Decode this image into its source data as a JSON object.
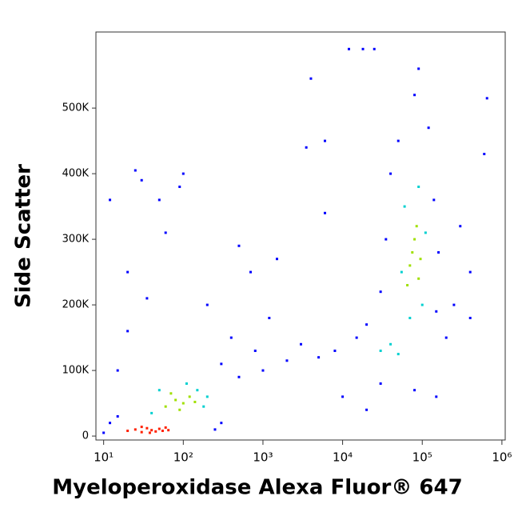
{
  "chart_data": {
    "type": "scatter",
    "xlabel": "Myeloperoxidase Alexa Fluor® 647",
    "ylabel": "Side Scatter",
    "xscale": "log",
    "xlim": [
      8,
      1100000
    ],
    "ylim": [
      -6000,
      616000
    ],
    "xticks": [
      {
        "value": 10,
        "label": "10¹"
      },
      {
        "value": 100,
        "label": "10²"
      },
      {
        "value": 1000,
        "label": "10³"
      },
      {
        "value": 10000,
        "label": "10⁴"
      },
      {
        "value": 100000,
        "label": "10⁵"
      },
      {
        "value": 1000000,
        "label": "10⁶"
      }
    ],
    "yticks": [
      0,
      {
        "value": 100000,
        "label": "100K"
      },
      {
        "value": 200000,
        "label": "200K"
      },
      {
        "value": 300000,
        "label": "300K"
      },
      {
        "value": 400000,
        "label": "400K"
      },
      {
        "value": 500000,
        "label": "500K"
      }
    ],
    "series": [
      {
        "color": "#0000ff",
        "x": [
          12,
          15,
          20,
          25,
          30,
          12,
          35,
          50,
          60,
          100,
          90,
          20,
          300,
          500,
          800,
          1000,
          2000,
          3000,
          5000,
          8000,
          15000,
          20000,
          4000,
          6000,
          3500,
          6000,
          1500,
          500,
          700,
          200,
          400,
          1200,
          10000,
          20000,
          30000,
          80000,
          150000,
          200000,
          250000,
          300000,
          400000,
          600000,
          650000,
          90000,
          80000,
          120000,
          50000,
          40000,
          140000,
          35000,
          160000,
          30000,
          150000,
          300,
          250,
          10,
          15,
          400000,
          18000,
          25000,
          12000
        ],
        "values": [
          20000,
          100000,
          160000,
          405000,
          390000,
          360000,
          210000,
          360000,
          310000,
          400000,
          380000,
          250000,
          110000,
          90000,
          130000,
          100000,
          115000,
          140000,
          120000,
          130000,
          150000,
          170000,
          545000,
          450000,
          440000,
          340000,
          270000,
          290000,
          250000,
          200000,
          150000,
          180000,
          60000,
          40000,
          80000,
          70000,
          60000,
          150000,
          200000,
          320000,
          250000,
          430000,
          515000,
          560000,
          520000,
          470000,
          450000,
          400000,
          360000,
          300000,
          280000,
          220000,
          190000,
          20000,
          10000,
          5000,
          30000,
          180000,
          590000,
          590000,
          590000
        ]
      },
      {
        "color": "#00d0d0",
        "x": [
          40,
          150,
          200,
          50,
          180,
          110,
          60000,
          100000,
          55000,
          110000,
          70000,
          90000,
          40000,
          50000,
          30000
        ],
        "values": [
          35000,
          70000,
          60000,
          70000,
          45000,
          80000,
          350000,
          200000,
          250000,
          310000,
          180000,
          380000,
          140000,
          125000,
          130000
        ]
      },
      {
        "color": "#a0e000",
        "x": [
          60,
          80,
          100,
          120,
          90,
          70,
          140,
          70000,
          80000,
          90000,
          75000,
          85000,
          65000,
          95000
        ],
        "values": [
          45000,
          55000,
          50000,
          60000,
          40000,
          65000,
          52000,
          260000,
          300000,
          240000,
          280000,
          320000,
          230000,
          270000
        ]
      },
      {
        "color": "#ff2000",
        "x": [
          20,
          25,
          30,
          35,
          40,
          45,
          50,
          55,
          60,
          30,
          38,
          65
        ],
        "values": [
          8000,
          10000,
          6000,
          12000,
          9000,
          7000,
          11000,
          8000,
          13000,
          14000,
          5000,
          9000
        ]
      }
    ]
  }
}
